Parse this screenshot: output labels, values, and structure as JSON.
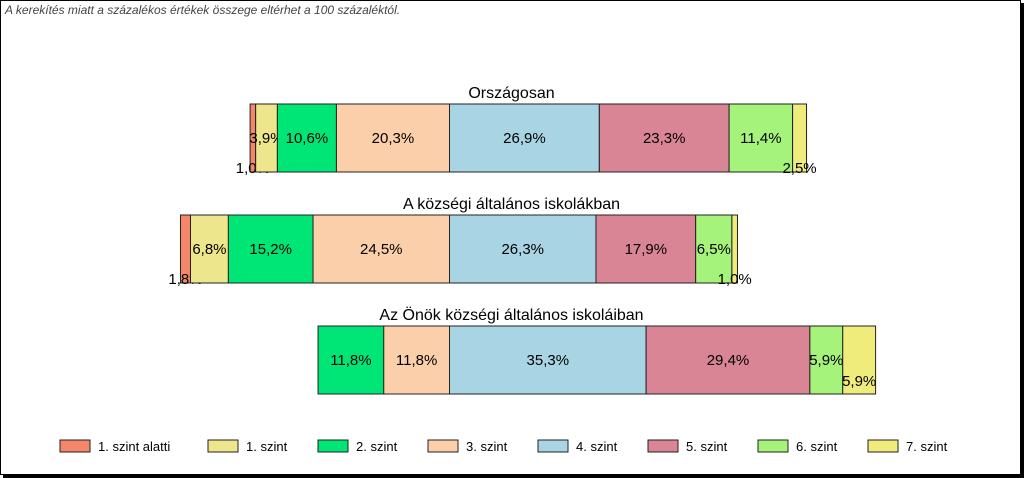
{
  "note": "A kerekítés miatt a  százalékos értékek összege eltérhet a 100 százaléktól.",
  "chart_data": {
    "type": "bar",
    "subtype": "stacked-horizontal-100",
    "legend_position": "bottom",
    "grid": false,
    "series": [
      {
        "name": "1. szint alatti",
        "color": "#F4876A"
      },
      {
        "name": "1. szint",
        "color": "#EEE68C"
      },
      {
        "name": "2. szint",
        "color": "#00E676"
      },
      {
        "name": "3. szint",
        "color": "#FCCFAB"
      },
      {
        "name": "4. szint",
        "color": "#A9D4E4"
      },
      {
        "name": "5. szint",
        "color": "#D98595"
      },
      {
        "name": "6. szint",
        "color": "#A6F37C"
      },
      {
        "name": "7. szint",
        "color": "#F0EC7C"
      }
    ],
    "groups": [
      {
        "title": "Országosan",
        "values": [
          1.0,
          3.9,
          10.6,
          20.3,
          26.9,
          23.3,
          11.4,
          2.5
        ],
        "labels": [
          "1,0%",
          "3,9%",
          "10,6%",
          "20,3%",
          "26,9%",
          "23,3%",
          "11,4%",
          "2,5%"
        ]
      },
      {
        "title": "A községi általános iskolákban",
        "values": [
          1.8,
          6.8,
          15.2,
          24.5,
          26.3,
          17.9,
          6.5,
          1.0
        ],
        "labels": [
          "1,8%",
          "6,8%",
          "15,2%",
          "24,5%",
          "26,3%",
          "17,9%",
          "6,5%",
          "1,0%"
        ]
      },
      {
        "title": "Az Önök községi általános iskoláiban",
        "values": [
          0,
          0,
          11.8,
          11.8,
          35.3,
          29.4,
          5.9,
          5.9
        ],
        "labels": [
          "",
          "",
          "11,8%",
          "11,8%",
          "35,3%",
          "29,4%",
          "5,9%",
          "5,9%"
        ]
      }
    ]
  }
}
